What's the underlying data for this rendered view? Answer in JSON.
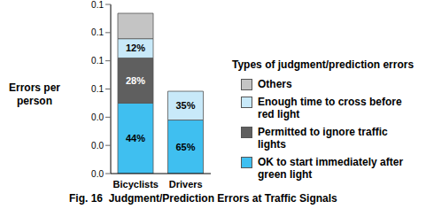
{
  "chart_data": {
    "type": "bar",
    "stacked": true,
    "title": "Fig. 16  Judgment/Prediction Errors at Traffic Signals",
    "y_label": "Errors per person",
    "legend_title": "Types of judgment/prediction errors",
    "legend": "right",
    "grid": false,
    "categories": [
      "Bicyclists",
      "Drivers"
    ],
    "ylim": [
      0,
      0.12
    ],
    "yticks": [
      {
        "value": 0,
        "label": "0.0"
      },
      {
        "value": 0.02,
        "label": "0.0"
      },
      {
        "value": 0.04,
        "label": "0.0"
      },
      {
        "value": 0.06,
        "label": "0.1"
      },
      {
        "value": 0.08,
        "label": "0.1"
      },
      {
        "value": 0.1,
        "label": "0.1"
      },
      {
        "value": 0.12,
        "label": "0.1"
      }
    ],
    "series": [
      {
        "name": "OK to start immediately after green light",
        "color": "#3fbff0",
        "values": [
          0.05,
          0.038
        ],
        "share_labels": [
          "44%",
          "65%"
        ]
      },
      {
        "name": "Permitted to ignore traffic lights",
        "color": "#5f5f5f",
        "values": [
          0.032,
          null
        ],
        "share_labels": [
          "28%",
          null
        ]
      },
      {
        "name": "Enough time to cross before red light",
        "color": "#c8e9f9",
        "values": [
          0.0137,
          0.0204
        ],
        "share_labels": [
          "12%",
          "35%"
        ]
      },
      {
        "name": "Others",
        "color": "#c4c4c4",
        "values": [
          0.018,
          null
        ],
        "share_labels": [
          null,
          null
        ]
      }
    ]
  }
}
